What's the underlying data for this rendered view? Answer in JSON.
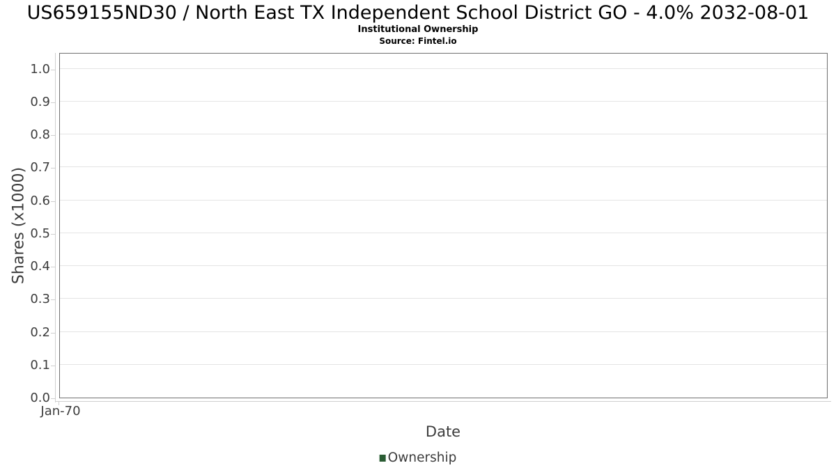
{
  "chart_data": {
    "type": "line",
    "title": "US659155ND30 / North East TX Independent School District GO - 4.0% 2032-08-01",
    "subtitle": "Institutional Ownership",
    "source": "Source: Fintel.io",
    "xlabel": "Date",
    "ylabel": "Shares (x1000)",
    "ylim": [
      0,
      1.05
    ],
    "grid": true,
    "y_ticks": [
      {
        "value": 0.0,
        "label": "0.0"
      },
      {
        "value": 0.1,
        "label": "0.1"
      },
      {
        "value": 0.2,
        "label": "0.2"
      },
      {
        "value": 0.3,
        "label": "0.3"
      },
      {
        "value": 0.4,
        "label": "0.4"
      },
      {
        "value": 0.5,
        "label": "0.5"
      },
      {
        "value": 0.6,
        "label": "0.6"
      },
      {
        "value": 0.7,
        "label": "0.7"
      },
      {
        "value": 0.8,
        "label": "0.8"
      },
      {
        "value": 0.9,
        "label": "0.9"
      },
      {
        "value": 1.0,
        "label": "1.0"
      }
    ],
    "x_ticks": [
      {
        "label": "Jan-70",
        "frac": 0
      }
    ],
    "legend": {
      "position": "bottom-center",
      "entries": [
        {
          "label": "Ownership",
          "color": "#2a5c33"
        }
      ]
    },
    "series": [
      {
        "name": "Ownership",
        "points": []
      }
    ]
  },
  "colors": {
    "background": "#ffffff",
    "title_text": "#000000",
    "tick_text": "#3c3c3c",
    "plot_border": "#6f6f6f",
    "gridline": "#e4e4e4",
    "axis_spine": "#cfcfcf",
    "legend_marker": "#2a5c33"
  }
}
